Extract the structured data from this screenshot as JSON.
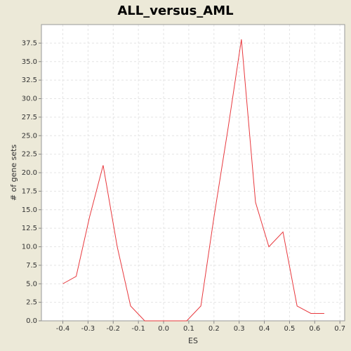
{
  "chart_data": {
    "type": "line",
    "title": "ALL_versus_AML",
    "xlabel": "ES",
    "ylabel": "# of gene sets",
    "x": [
      -0.4,
      -0.347,
      -0.294,
      -0.24,
      -0.184,
      -0.131,
      -0.075,
      -0.02,
      0.036,
      0.092,
      0.148,
      0.2,
      0.256,
      0.309,
      0.365,
      0.418,
      0.474,
      0.53,
      0.585,
      0.638
    ],
    "series": [
      {
        "name": "ALL_versus_AML",
        "color": "#e8383d",
        "values": [
          5,
          6,
          14,
          21,
          10,
          2,
          0,
          0,
          0,
          0,
          2,
          14,
          26,
          38,
          16,
          10,
          12,
          2,
          1,
          1
        ]
      }
    ],
    "xlim": [
      -0.485,
      0.719
    ],
    "ylim": [
      0,
      40
    ],
    "xticks": [
      -0.4,
      -0.3,
      -0.2,
      -0.1,
      {
        "value": 0,
        "label": "0.0"
      },
      0.1,
      0.2,
      0.3,
      0.4,
      0.5,
      0.6,
      0.7
    ],
    "yticks": [
      {
        "value": 0,
        "label": "0.0"
      },
      2.5,
      {
        "value": 5,
        "label": "5.0"
      },
      7.5,
      {
        "value": 10,
        "label": "10.0"
      },
      12.5,
      {
        "value": 15,
        "label": "15.0"
      },
      17.5,
      {
        "value": 20,
        "label": "20.0"
      },
      22.5,
      {
        "value": 25,
        "label": "25.0"
      },
      27.5,
      {
        "value": 30,
        "label": "30.0"
      },
      32.5,
      {
        "value": 35,
        "label": "35.0"
      },
      37.5
    ],
    "grid": true
  }
}
